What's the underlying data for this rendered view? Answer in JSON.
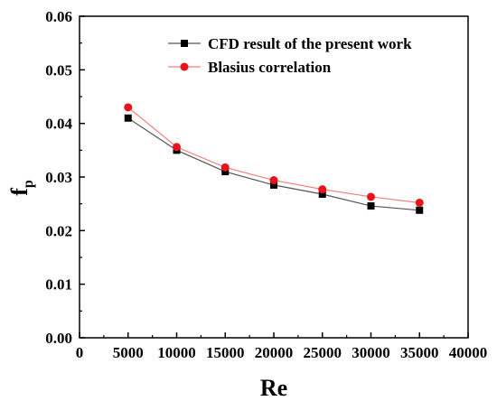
{
  "chart_data": {
    "type": "line",
    "xlabel": "Re",
    "ylabel_main": "f",
    "ylabel_sub": "p",
    "xlim": [
      0,
      40000
    ],
    "ylim": [
      0.0,
      0.06
    ],
    "x_ticks": [
      0,
      5000,
      10000,
      15000,
      20000,
      25000,
      30000,
      35000,
      40000
    ],
    "x_tick_labels": [
      "0",
      "5000",
      "10000",
      "15000",
      "20000",
      "25000",
      "30000",
      "35000",
      "40000"
    ],
    "y_ticks": [
      0.0,
      0.01,
      0.02,
      0.03,
      0.04,
      0.05,
      0.06
    ],
    "y_tick_labels": [
      "0.00",
      "0.01",
      "0.02",
      "0.03",
      "0.04",
      "0.05",
      "0.06"
    ],
    "grid": false,
    "legend_position": "top-right",
    "x": [
      5000,
      10000,
      15000,
      20000,
      25000,
      30000,
      35000
    ],
    "series": [
      {
        "name": "CFD result of the present work",
        "marker": "square",
        "color": "#000000",
        "line_color": "#555555",
        "values": [
          0.041,
          0.035,
          0.031,
          0.0285,
          0.0268,
          0.0246,
          0.0238
        ]
      },
      {
        "name": "Blasius correlation",
        "marker": "circle",
        "color": "#e8141b",
        "line_color": "#f08080",
        "values": [
          0.043,
          0.0356,
          0.0318,
          0.0294,
          0.0277,
          0.0263,
          0.0252
        ]
      }
    ]
  }
}
